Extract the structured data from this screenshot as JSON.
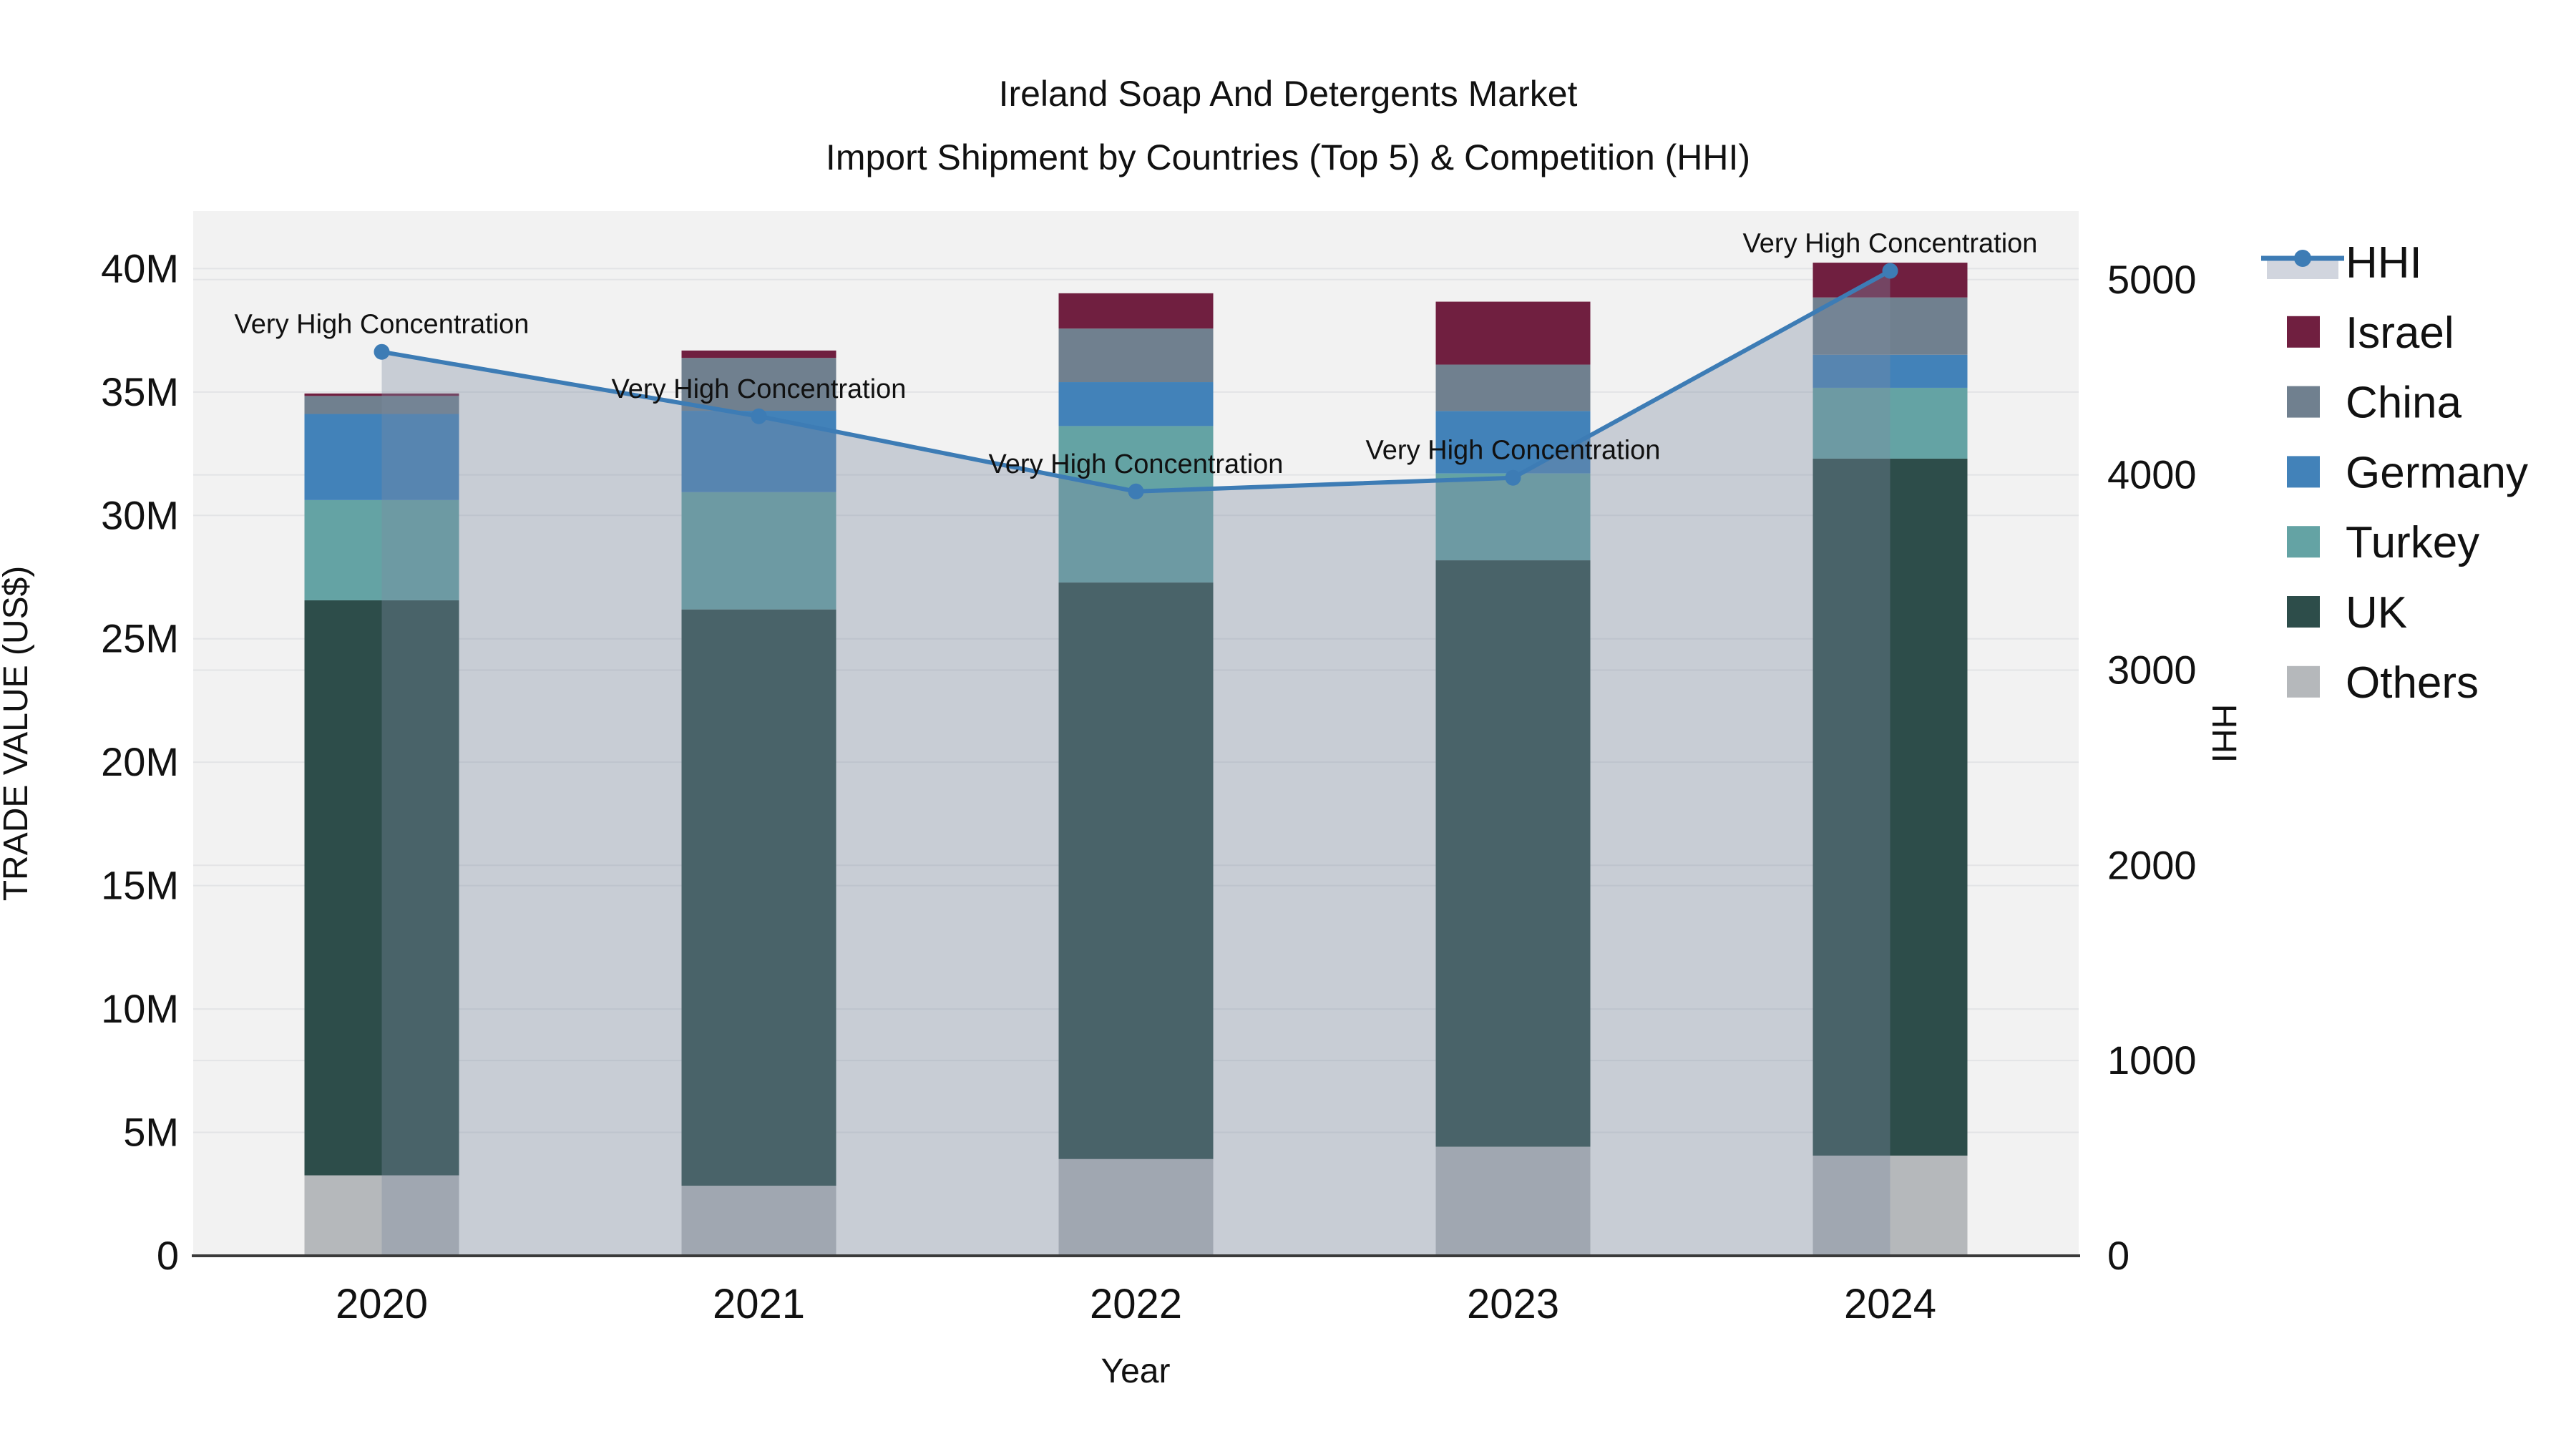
{
  "title": {
    "line1": "Ireland Soap And Detergents Market",
    "line2": "Import Shipment by Countries (Top 5) & Competition (HHI)"
  },
  "axes": {
    "x": {
      "title": "Year",
      "categories": [
        "2020",
        "2021",
        "2022",
        "2023",
        "2024"
      ]
    },
    "y_left": {
      "title": "TRADE VALUE (US$)",
      "tick_labels": [
        "0",
        "5M",
        "10M",
        "15M",
        "20M",
        "25M",
        "30M",
        "35M",
        "40M"
      ],
      "tick_values_millions": [
        0,
        5,
        10,
        15,
        20,
        25,
        30,
        35,
        40
      ],
      "range_millions": [
        0,
        42.33
      ]
    },
    "y_right": {
      "title": "HHI",
      "tick_labels": [
        "0",
        "1000",
        "2000",
        "3000",
        "4000",
        "5000"
      ],
      "tick_values": [
        0,
        1000,
        2000,
        3000,
        4000,
        5000
      ],
      "range": [
        0,
        5351
      ]
    }
  },
  "chart_data": {
    "type": "bar+line",
    "categories": [
      "2020",
      "2021",
      "2022",
      "2023",
      "2024"
    ],
    "bar_unit": "millions US$",
    "stack_order_bottom_to_top": [
      "Others",
      "UK",
      "Turkey",
      "Germany",
      "China",
      "Israel"
    ],
    "series": [
      {
        "name": "Others",
        "color": "#b5b8bb",
        "values": [
          3.26,
          2.84,
          3.92,
          4.42,
          4.06
        ]
      },
      {
        "name": "UK",
        "color": "#2d4d4a",
        "values": [
          23.3,
          23.35,
          23.36,
          23.76,
          28.24
        ]
      },
      {
        "name": "Turkey",
        "color": "#64a3a4",
        "values": [
          4.06,
          4.75,
          6.34,
          3.52,
          2.87
        ]
      },
      {
        "name": "Germany",
        "color": "#4282b9",
        "values": [
          3.49,
          3.3,
          1.78,
          2.53,
          1.34
        ]
      },
      {
        "name": "China",
        "color": "#70808f",
        "values": [
          0.73,
          2.14,
          2.17,
          1.88,
          2.32
        ]
      },
      {
        "name": "Israel",
        "color": "#701f40",
        "values": [
          0.1,
          0.3,
          1.43,
          2.55,
          1.41
        ]
      }
    ],
    "line": {
      "name": "HHI",
      "axis": "right",
      "color": "#3d7cb5",
      "area_fill": "rgba(124,138,160,0.36)",
      "values": [
        4630,
        4300,
        3915,
        3985,
        5045
      ]
    },
    "annotations": [
      {
        "category": "2020",
        "text": "Very High Concentration"
      },
      {
        "category": "2021",
        "text": "Very High Concentration"
      },
      {
        "category": "2022",
        "text": "Very High Concentration"
      },
      {
        "category": "2023",
        "text": "Very High Concentration"
      },
      {
        "category": "2024",
        "text": "Very High Concentration"
      }
    ],
    "grid": true,
    "legend_position": "right"
  },
  "legend": {
    "items": [
      {
        "label": "HHI",
        "type": "line",
        "color": "#3d7cb5",
        "sample_fill": "#d1d5de"
      },
      {
        "label": "Israel",
        "type": "swatch",
        "color": "#701f40"
      },
      {
        "label": "China",
        "type": "swatch",
        "color": "#70808f"
      },
      {
        "label": "Germany",
        "type": "swatch",
        "color": "#4282b9"
      },
      {
        "label": "Turkey",
        "type": "swatch",
        "color": "#64a3a4"
      },
      {
        "label": "UK",
        "type": "swatch",
        "color": "#2d4d4a"
      },
      {
        "label": "Others",
        "type": "swatch",
        "color": "#b5b8bb"
      }
    ]
  },
  "colors": {
    "figure_bg": "#ffffff",
    "plot_bg": "#f2f2f2",
    "gridline": "#e3e4e6",
    "axis_line": "#3a3a3a",
    "text": "#111111"
  }
}
